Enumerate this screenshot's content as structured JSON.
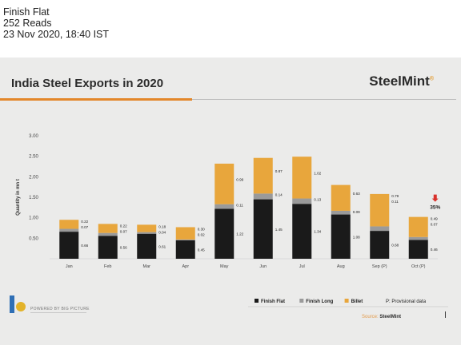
{
  "post": {
    "title": "Finish Flat",
    "reads": "252 Reads",
    "timestamp": "23 Nov 2020, 18:40 IST"
  },
  "slide": {
    "title": "India Steel Exports in 2020",
    "brand": "SteelMint",
    "brand_mark": "®",
    "powered_by": "POWERED BY BIG PICTURE",
    "source_label": "Source:",
    "source_name": "SteelMint",
    "provisional_note": "P: Provisional data"
  },
  "chart_data": {
    "type": "bar",
    "stacked": true,
    "ylabel": "Quantity in mn t",
    "ylim": [
      0,
      3.0
    ],
    "yticks": [
      "3.00",
      "2.50",
      "2.00",
      "1.50",
      "1.00",
      "0.50"
    ],
    "ytick_values": [
      3.0,
      2.5,
      2.0,
      1.5,
      1.0,
      0.5
    ],
    "categories": [
      "Jan",
      "Feb",
      "Mar",
      "Apr",
      "May",
      "Jun",
      "Jul",
      "Aug",
      "Sep (P)",
      "Oct (P)"
    ],
    "series": [
      {
        "name": "Finish Flat",
        "color": "#1a1a1a",
        "values": [
          0.66,
          0.56,
          0.61,
          0.45,
          1.22,
          1.45,
          1.34,
          1.08,
          0.68,
          0.46
        ],
        "labels": [
          "0.66",
          "0.56",
          "0.61",
          "0.45",
          "1.22",
          "1.45",
          "1.34",
          "1.08",
          "0.68",
          "0.46"
        ]
      },
      {
        "name": "Finish Long",
        "color": "#9a9a9a",
        "values": [
          0.07,
          0.07,
          0.04,
          0.02,
          0.11,
          0.14,
          0.13,
          0.09,
          0.11,
          0.07
        ],
        "labels": [
          "0.07",
          "0.07",
          "0.04",
          "0.02",
          "0.11",
          "0.14",
          "0.13",
          "0.09",
          "0.11",
          "0.07"
        ]
      },
      {
        "name": "Billet",
        "color": "#e8a63c",
        "values": [
          0.22,
          0.22,
          0.18,
          0.3,
          0.99,
          0.87,
          1.02,
          0.63,
          0.79,
          0.49
        ],
        "labels": [
          "0.22",
          "0.22",
          "0.18",
          "0.30",
          "0.99",
          "0.87",
          "1.02",
          "0.63",
          "0.79",
          "0.49"
        ]
      }
    ],
    "annotations": [
      {
        "category": "Oct (P)",
        "text": "35%",
        "arrow": "down",
        "arrow_color": "#d9312b"
      }
    ],
    "legend_position": "bottom-right",
    "grid": false
  }
}
